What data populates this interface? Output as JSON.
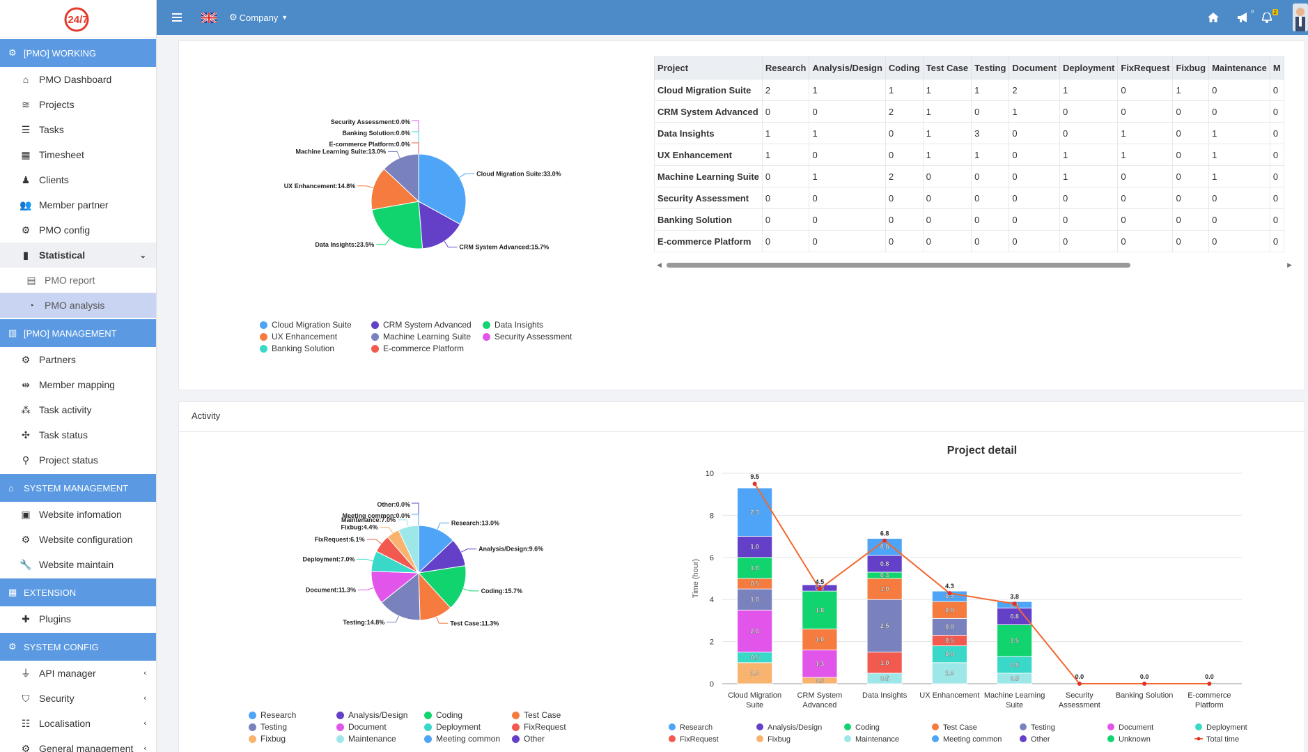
{
  "nav": {
    "sections": [
      {
        "title": "[PMO] WORKING",
        "icon": "cogs-icon",
        "items": [
          {
            "label": "PMO Dashboard",
            "icon": "home-icon"
          },
          {
            "label": "Projects",
            "icon": "layers-icon"
          },
          {
            "label": "Tasks",
            "icon": "list-icon"
          },
          {
            "label": "Timesheet",
            "icon": "grid-icon"
          },
          {
            "label": "Clients",
            "icon": "user-icon"
          },
          {
            "label": "Member partner",
            "icon": "team-icon"
          },
          {
            "label": "PMO config",
            "icon": "gear-icon"
          },
          {
            "label": "Statistical",
            "icon": "bar-chart-icon",
            "expanded": true
          },
          {
            "label": "PMO report",
            "icon": "excel-icon",
            "sub": true
          },
          {
            "label": "PMO analysis",
            "icon": "pie-chart-icon",
            "sub": true,
            "active": true
          }
        ]
      },
      {
        "title": "[PMO] MANAGEMENT",
        "icon": "building-icon",
        "items": [
          {
            "label": "Partners",
            "icon": "gear-icon"
          },
          {
            "label": "Member mapping",
            "icon": "link-users-icon"
          },
          {
            "label": "Task activity",
            "icon": "nodes-icon"
          },
          {
            "label": "Task status",
            "icon": "fan-icon"
          },
          {
            "label": "Project status",
            "icon": "pin-icon"
          }
        ]
      },
      {
        "title": "SYSTEM MANAGEMENT",
        "icon": "shop-icon",
        "items": [
          {
            "label": "Website infomation",
            "icon": "document-icon"
          },
          {
            "label": "Website configuration",
            "icon": "gear-icon"
          },
          {
            "label": "Website maintain",
            "icon": "wrench-icon"
          }
        ]
      },
      {
        "title": "EXTENSION",
        "icon": "grid-icon",
        "items": [
          {
            "label": "Plugins",
            "icon": "puzzle-icon"
          }
        ]
      },
      {
        "title": "SYSTEM CONFIG",
        "icon": "cogs-icon",
        "items": [
          {
            "label": "API manager",
            "icon": "plug-icon",
            "caret": "‹"
          },
          {
            "label": "Security",
            "icon": "shield-icon",
            "caret": "‹"
          },
          {
            "label": "Localisation",
            "icon": "sliders-icon",
            "caret": "‹"
          },
          {
            "label": "General management",
            "icon": "gear-icon",
            "caret": "‹"
          }
        ]
      }
    ],
    "statistical_caret": "⌄"
  },
  "topbar": {
    "company_label": "Company",
    "notif_badge_a": "0",
    "notif_badge_b": "2",
    "logo_text": "24/7"
  },
  "colors": {
    "accent": "#5b9ae2",
    "topbar": "#4d8ac8"
  },
  "table": {
    "headers": [
      "Project",
      "Research",
      "Analysis/Design",
      "Coding",
      "Test Case",
      "Testing",
      "Document",
      "Deployment",
      "FixRequest",
      "Fixbug",
      "Maintenance",
      "M"
    ],
    "rows": [
      [
        "Cloud Migration Suite",
        "2",
        "1",
        "1",
        "1",
        "1",
        "2",
        "1",
        "0",
        "1",
        "0",
        "0"
      ],
      [
        "CRM System Advanced",
        "0",
        "0",
        "2",
        "1",
        "0",
        "1",
        "0",
        "0",
        "0",
        "0",
        "0"
      ],
      [
        "Data Insights",
        "1",
        "1",
        "0",
        "1",
        "3",
        "0",
        "0",
        "1",
        "0",
        "1",
        "0"
      ],
      [
        "UX Enhancement",
        "1",
        "0",
        "0",
        "1",
        "1",
        "0",
        "1",
        "1",
        "0",
        "1",
        "0"
      ],
      [
        "Machine Learning Suite",
        "0",
        "1",
        "2",
        "0",
        "0",
        "0",
        "1",
        "0",
        "0",
        "1",
        "0"
      ],
      [
        "Security Assessment",
        "0",
        "0",
        "0",
        "0",
        "0",
        "0",
        "0",
        "0",
        "0",
        "0",
        "0"
      ],
      [
        "Banking Solution",
        "0",
        "0",
        "0",
        "0",
        "0",
        "0",
        "0",
        "0",
        "0",
        "0",
        "0"
      ],
      [
        "E-commerce Platform",
        "0",
        "0",
        "0",
        "0",
        "0",
        "0",
        "0",
        "0",
        "0",
        "0",
        "0"
      ]
    ]
  },
  "activity_title": "Activity",
  "chart_data": [
    {
      "type": "pie",
      "title": "",
      "slices": [
        {
          "label": "Cloud Migration Suite",
          "value": 33.0,
          "display": "Cloud Migration Suite:33.0%",
          "color": "#4ea5f7"
        },
        {
          "label": "CRM System Advanced",
          "value": 15.7,
          "display": "CRM System Advanced:15.7%",
          "color": "#6440c9"
        },
        {
          "label": "Data Insights",
          "value": 23.5,
          "display": "Data Insights:23.5%",
          "color": "#12d46f"
        },
        {
          "label": "UX Enhancement",
          "value": 14.8,
          "display": "UX Enhancement:14.8%",
          "color": "#f57b3e"
        },
        {
          "label": "Machine Learning Suite",
          "value": 13.0,
          "display": "Machine Learning Suite:13.0%",
          "color": "#7a82bd"
        },
        {
          "label": "Security Assessment",
          "value": 0.0,
          "display": "Security Assessment:0.0%",
          "color": "#e255ea"
        },
        {
          "label": "Banking Solution",
          "value": 0.0,
          "display": "Banking Solution:0.0%",
          "color": "#3ad8c9"
        },
        {
          "label": "E-commerce Platform",
          "value": 0.0,
          "display": "E-commerce Platform:0.0%",
          "color": "#f25a4f"
        }
      ],
      "legend": [
        "Cloud Migration Suite",
        "CRM System Advanced",
        "Data Insights",
        "UX Enhancement",
        "Machine Learning Suite",
        "Security Assessment",
        "Banking Solution",
        "E-commerce Platform"
      ]
    },
    {
      "type": "pie",
      "title": "",
      "slices": [
        {
          "label": "Research",
          "value": 13.0,
          "display": "Research:13.0%",
          "color": "#4ea5f7"
        },
        {
          "label": "Analysis/Design",
          "value": 9.6,
          "display": "Analysis/Design:9.6%",
          "color": "#6440c9"
        },
        {
          "label": "Coding",
          "value": 15.7,
          "display": "Coding:15.7%",
          "color": "#12d46f"
        },
        {
          "label": "Test Case",
          "value": 11.3,
          "display": "Test Case:11.3%",
          "color": "#f57b3e"
        },
        {
          "label": "Testing",
          "value": 14.8,
          "display": "Testing:14.8%",
          "color": "#7a82bd"
        },
        {
          "label": "Document",
          "value": 11.3,
          "display": "Document:11.3%",
          "color": "#e255ea"
        },
        {
          "label": "Deployment",
          "value": 7.0,
          "display": "Deployment:7.0%",
          "color": "#3ad8c9"
        },
        {
          "label": "FixRequest",
          "value": 6.1,
          "display": "FixRequest:6.1%",
          "color": "#f25a4f"
        },
        {
          "label": "Fixbug",
          "value": 4.4,
          "display": "Fixbug:4.4%",
          "color": "#f8b36e"
        },
        {
          "label": "Maintenance",
          "value": 7.0,
          "display": "Maintenance:7.0%",
          "color": "#9de7e8"
        },
        {
          "label": "Other",
          "value": 0.0,
          "display": "Other:0.0%",
          "color": "#6440c9"
        },
        {
          "label": "Meeting common",
          "value": 0.0,
          "display": "Meeting common:0.0%",
          "color": "#4ea5f7"
        }
      ],
      "legend": [
        "Research",
        "Analysis/Design",
        "Coding",
        "Test Case",
        "Testing",
        "Document",
        "Deployment",
        "FixRequest",
        "Fixbug",
        "Maintenance",
        "Meeting common",
        "Other"
      ]
    },
    {
      "type": "bar",
      "title": "Project detail",
      "ylabel": "Time (hour)",
      "ylim": [
        0,
        10
      ],
      "yticks": [
        0,
        2,
        4,
        6,
        8,
        10
      ],
      "categories": [
        [
          "Cloud Migration",
          "Suite"
        ],
        [
          "CRM System",
          "Advanced"
        ],
        [
          "Data Insights"
        ],
        [
          "UX Enhancement"
        ],
        [
          "Machine Learning",
          "Suite"
        ],
        [
          "Security",
          "Assessment"
        ],
        [
          "Banking Solution"
        ],
        [
          "E-commerce",
          "Platform"
        ]
      ],
      "stacked": true,
      "series": [
        {
          "name": "Fixbug",
          "color": "#f8b36e",
          "values": [
            1.0,
            0.3,
            0,
            0,
            0,
            0,
            0,
            0
          ]
        },
        {
          "name": "Maintenance",
          "color": "#9de7e8",
          "values": [
            0,
            0,
            0.5,
            1.0,
            0.5,
            0,
            0,
            0
          ]
        },
        {
          "name": "Deployment",
          "color": "#3ad8c9",
          "values": [
            0.5,
            0,
            0,
            0.8,
            0.8,
            0,
            0,
            0
          ]
        },
        {
          "name": "Document",
          "color": "#e255ea",
          "values": [
            2.0,
            1.3,
            0,
            0,
            0,
            0,
            0,
            0
          ]
        },
        {
          "name": "FixRequest",
          "color": "#f25a4f",
          "values": [
            0,
            0.0,
            1.0,
            0.5,
            0,
            0,
            0,
            0
          ]
        },
        {
          "name": "Testing",
          "color": "#7a82bd",
          "values": [
            1.0,
            0,
            2.5,
            0.8,
            0,
            0,
            0,
            0
          ]
        },
        {
          "name": "Unknown",
          "color": "#12d46f",
          "values": [
            0,
            0,
            0.0,
            0,
            0,
            0,
            0,
            0
          ]
        },
        {
          "name": "Test Case",
          "color": "#f57b3e",
          "values": [
            0.5,
            1.0,
            1.0,
            0.8,
            0,
            0,
            0,
            0
          ]
        },
        {
          "name": "Coding",
          "color": "#12d46f",
          "values": [
            1.0,
            1.8,
            0.3,
            0,
            1.5,
            0,
            0,
            0
          ]
        },
        {
          "name": "Analysis/Design",
          "color": "#6440c9",
          "values": [
            1.0,
            0.3,
            0.8,
            0,
            0.8,
            0,
            0,
            0
          ]
        },
        {
          "name": "Research",
          "color": "#4ea5f7",
          "values": [
            2.3,
            0,
            0.8,
            0.5,
            0.3,
            0,
            0,
            0
          ]
        }
      ],
      "line": {
        "name": "Total time",
        "color": "#f2672f",
        "values": [
          9.5,
          4.5,
          6.8,
          4.3,
          3.8,
          0.0,
          0.0,
          0.0
        ]
      },
      "legend": [
        {
          "name": "Research",
          "color": "#4ea5f7"
        },
        {
          "name": "Analysis/Design",
          "color": "#6440c9"
        },
        {
          "name": "Coding",
          "color": "#12d46f"
        },
        {
          "name": "Test Case",
          "color": "#f57b3e"
        },
        {
          "name": "Testing",
          "color": "#7a82bd"
        },
        {
          "name": "Document",
          "color": "#e255ea"
        },
        {
          "name": "Deployment",
          "color": "#3ad8c9"
        },
        {
          "name": "FixRequest",
          "color": "#f25a4f"
        },
        {
          "name": "Fixbug",
          "color": "#f8b36e"
        },
        {
          "name": "Maintenance",
          "color": "#9de7e8"
        },
        {
          "name": "Meeting common",
          "color": "#4ea5f7"
        },
        {
          "name": "Other",
          "color": "#6440c9"
        },
        {
          "name": "Unknown",
          "color": "#12d46f"
        },
        {
          "name": "Total time",
          "color": "#f2672f",
          "line": true
        }
      ]
    }
  ]
}
